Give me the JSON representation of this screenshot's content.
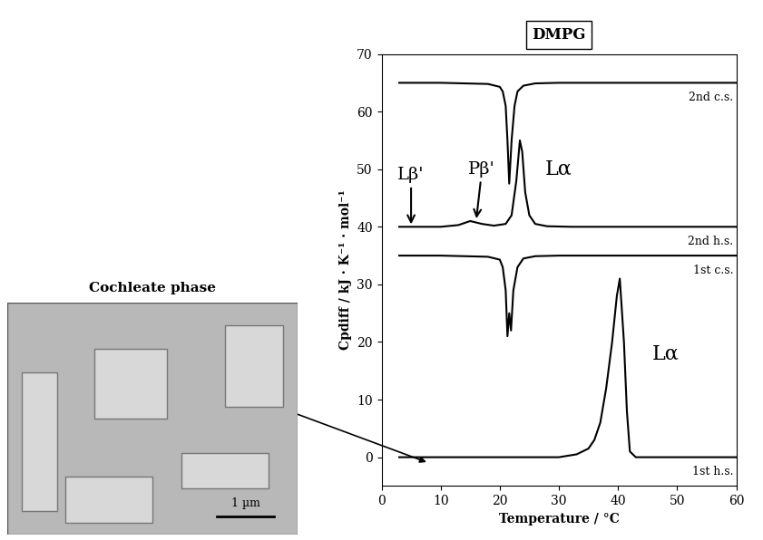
{
  "chart_data": {
    "type": "line",
    "title": "DMPG",
    "x_label": "Temperature / °C",
    "y_label": "Cpdiff / kJ · K⁻¹ · mol⁻¹",
    "xlim": [
      0,
      60
    ],
    "ylim": [
      -5,
      70
    ],
    "xticks": [
      0,
      10,
      20,
      30,
      40,
      50,
      60
    ],
    "yticks": [
      0,
      10,
      20,
      30,
      40,
      50,
      60,
      70
    ],
    "grid": false,
    "series": [
      {
        "name": "2nd c.s.",
        "color": "#000000",
        "x": [
          3,
          10,
          18,
          20,
          20.5,
          21,
          21.3,
          21.6,
          22,
          22.5,
          23,
          24,
          26,
          30,
          40,
          50,
          60
        ],
        "values": [
          65,
          65,
          64.8,
          64.3,
          63.5,
          61,
          55,
          47.5,
          55,
          61,
          63.5,
          64.5,
          64.9,
          65,
          65,
          65,
          65
        ]
      },
      {
        "name": "2nd h.s.",
        "color": "#000000",
        "x": [
          3,
          10,
          13,
          15,
          17,
          19,
          21,
          22,
          22.8,
          23.4,
          23.8,
          24.3,
          25,
          26,
          28,
          32,
          40,
          50,
          60
        ],
        "values": [
          40,
          40,
          40.3,
          41,
          40.5,
          40.2,
          40.5,
          42,
          48,
          55,
          53,
          46,
          42,
          40.5,
          40.1,
          40,
          40,
          40,
          40
        ]
      },
      {
        "name": "1st c.s.",
        "color": "#000000",
        "x": [
          3,
          10,
          18,
          20,
          20.5,
          21,
          21.3,
          21.6,
          21.9,
          22.3,
          23,
          24,
          26,
          30,
          40,
          50,
          60
        ],
        "values": [
          35,
          35,
          34.8,
          34.3,
          33,
          29,
          21,
          25,
          22,
          29,
          33,
          34.5,
          34.9,
          35,
          35,
          35,
          35
        ]
      },
      {
        "name": "1st h.s.",
        "color": "#000000",
        "x": [
          3,
          10,
          20,
          30,
          33,
          35,
          36,
          37,
          38,
          39,
          39.8,
          40.3,
          41,
          41.5,
          42,
          43,
          50,
          60
        ],
        "values": [
          0,
          0,
          0,
          0,
          0.5,
          1.5,
          3,
          6,
          12,
          20,
          28,
          31,
          20,
          8,
          1,
          0,
          0,
          0
        ]
      }
    ],
    "annotations": [
      {
        "text": "Lβ'",
        "x": 5,
        "y": 40
      },
      {
        "text": "Pβ'",
        "x": 16,
        "y": 41
      },
      {
        "text": "Lα",
        "x": 30,
        "y": 50
      },
      {
        "text": "Lα",
        "x": 48,
        "y": 18
      }
    ],
    "image": {
      "title": "Cochleate phase",
      "scale_bar": "1 µm",
      "points_to": {
        "x": 8,
        "y": -1
      }
    }
  }
}
